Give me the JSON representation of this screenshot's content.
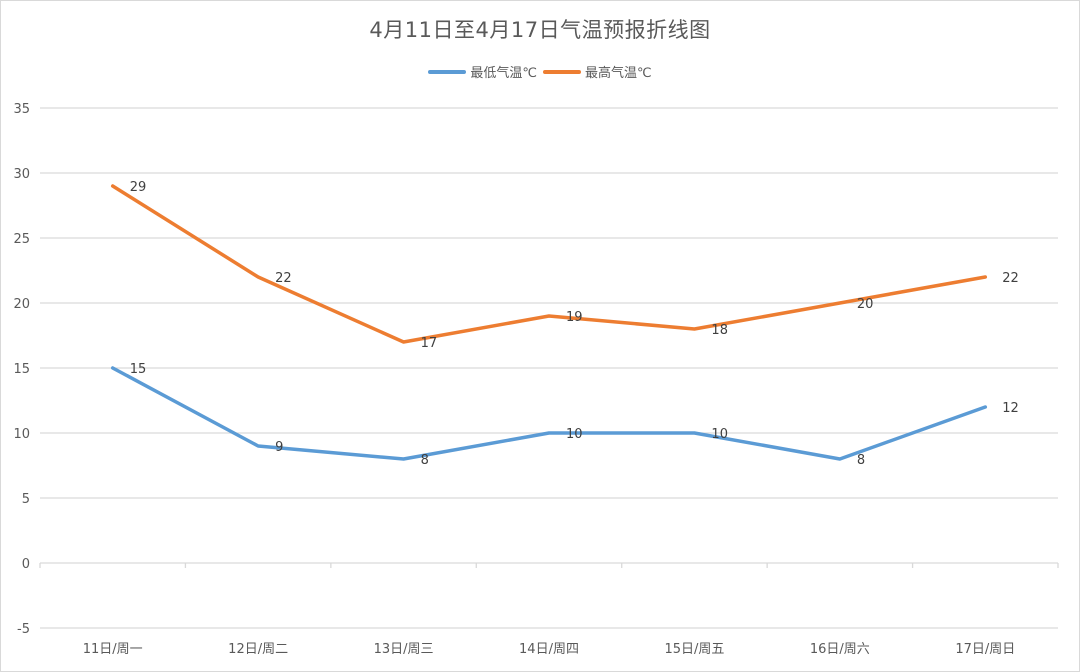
{
  "chart_data": {
    "type": "line",
    "title": "4月11日至4月17日气温预报折线图",
    "xlabel": "",
    "ylabel": "",
    "categories": [
      "11日/周一",
      "12日/周二",
      "13日/周三",
      "14日/周四",
      "15日/周五",
      "16日/周六",
      "17日/周日"
    ],
    "series": [
      {
        "name": "最低气温℃",
        "color": "#5B9BD5",
        "values": [
          15,
          9,
          8,
          10,
          10,
          8,
          12
        ]
      },
      {
        "name": "最高气温℃",
        "color": "#ED7D31",
        "values": [
          29,
          22,
          17,
          19,
          18,
          20,
          22
        ]
      }
    ],
    "ylim": [
      -5,
      35
    ],
    "yticks": [
      -5,
      0,
      5,
      10,
      15,
      20,
      25,
      30,
      35
    ],
    "grid": true,
    "legend_position": "top",
    "data_labels": true
  },
  "colors": {
    "grid": "#d9d9d9",
    "text": "#595959",
    "low_series": "#5B9BD5",
    "high_series": "#ED7D31"
  }
}
